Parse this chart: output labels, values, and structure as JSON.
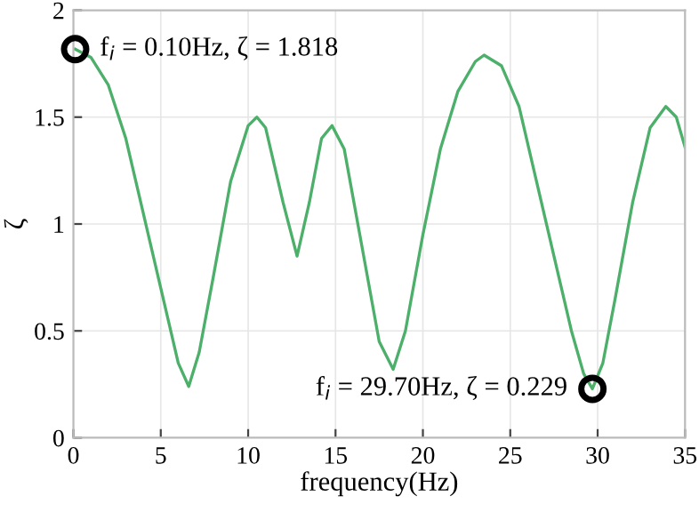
{
  "chart_data": {
    "type": "line",
    "xlabel": "frequency(Hz)",
    "ylabel": "ζ",
    "x": [
      0.1,
      1,
      2,
      3,
      4,
      5,
      6,
      6.6,
      7.2,
      8,
      9,
      10,
      10.5,
      11,
      12,
      12.8,
      13.5,
      14.2,
      14.8,
      15.5,
      16.5,
      17.5,
      18.3,
      19,
      20,
      21,
      22,
      23,
      23.5,
      24.5,
      25.5,
      26.5,
      27.5,
      28.5,
      29.2,
      29.7,
      30.3,
      31,
      32,
      33,
      33.9,
      34.5,
      35
    ],
    "series": [
      {
        "color": "#4caf6a",
        "values": [
          1.818,
          1.78,
          1.65,
          1.4,
          1.05,
          0.7,
          0.35,
          0.24,
          0.4,
          0.75,
          1.2,
          1.46,
          1.5,
          1.45,
          1.1,
          0.85,
          1.1,
          1.4,
          1.46,
          1.35,
          0.9,
          0.45,
          0.32,
          0.5,
          0.95,
          1.35,
          1.62,
          1.76,
          1.79,
          1.74,
          1.55,
          1.2,
          0.85,
          0.5,
          0.3,
          0.229,
          0.35,
          0.65,
          1.1,
          1.45,
          1.55,
          1.5,
          1.36
        ]
      }
    ],
    "xlim": [
      0,
      35
    ],
    "ylim": [
      0,
      2
    ],
    "xticks": [
      0,
      5,
      10,
      15,
      20,
      25,
      30,
      35
    ],
    "yticks": [
      0,
      0.5,
      1,
      1.5,
      2
    ],
    "grid": true,
    "annotations": [
      {
        "text": "f$_{i}$ = 0.10Hz, ζ = 1.818",
        "x": 0.1,
        "y": 1.818
      },
      {
        "text": "f$_{i}$ = 29.70Hz, ζ = 0.229",
        "x": 29.7,
        "y": 0.229
      }
    ]
  }
}
